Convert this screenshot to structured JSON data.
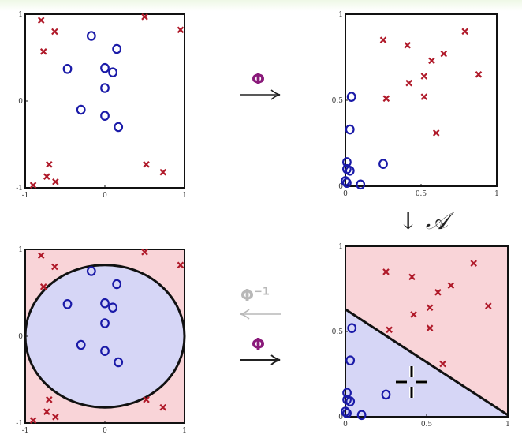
{
  "operators": {
    "phi": "Φ",
    "phi_inverse_base": "Φ",
    "phi_inverse_exp": "−1",
    "down_arrow": "↓",
    "classifier": "𝒜"
  },
  "colors": {
    "cross": "#b01a2a",
    "circle": "#1a1aa8",
    "region_red": "#f9d4d8",
    "region_blue": "#d6d6f6",
    "boundary": "#111111",
    "operator": "#8a1a7a"
  },
  "input_space": {
    "x_ticks": [
      "-1",
      "0",
      "1"
    ],
    "y_ticks": [
      "1",
      "0",
      "-1"
    ],
    "crosses": [
      [
        -0.8,
        0.93
      ],
      [
        -0.63,
        0.8
      ],
      [
        -0.77,
        0.57
      ],
      [
        0.5,
        0.97
      ],
      [
        0.95,
        0.82
      ],
      [
        -0.7,
        -0.73
      ],
      [
        -0.73,
        -0.87
      ],
      [
        -0.62,
        -0.93
      ],
      [
        -0.9,
        -0.97
      ],
      [
        0.52,
        -0.73
      ],
      [
        0.73,
        -0.82
      ]
    ],
    "circles": [
      [
        -0.17,
        0.75
      ],
      [
        0.15,
        0.6
      ],
      [
        -0.47,
        0.37
      ],
      [
        0.0,
        0.38
      ],
      [
        0.1,
        0.33
      ],
      [
        0.0,
        0.15
      ],
      [
        -0.3,
        -0.1
      ],
      [
        0.0,
        -0.17
      ],
      [
        0.17,
        -0.3
      ]
    ]
  },
  "feature_space": {
    "x_ticks": [
      "0",
      "0.5",
      "1"
    ],
    "y_ticks": [
      "1",
      "0.5",
      "0"
    ],
    "crosses": [
      [
        0.25,
        0.85
      ],
      [
        0.41,
        0.82
      ],
      [
        0.65,
        0.77
      ],
      [
        0.79,
        0.9
      ],
      [
        0.57,
        0.73
      ],
      [
        0.52,
        0.64
      ],
      [
        0.42,
        0.6
      ],
      [
        0.88,
        0.65
      ],
      [
        0.27,
        0.51
      ],
      [
        0.52,
        0.52
      ],
      [
        0.6,
        0.31
      ]
    ],
    "circles": [
      [
        0.04,
        0.52
      ],
      [
        0.03,
        0.33
      ],
      [
        0.01,
        0.14
      ],
      [
        0.01,
        0.1
      ],
      [
        0.03,
        0.09
      ],
      [
        0.0,
        0.03
      ],
      [
        0.01,
        0.02
      ],
      [
        0.1,
        0.01
      ],
      [
        0.25,
        0.13
      ]
    ]
  },
  "decision_boundary": {
    "ellipse": {
      "cx": 0.0,
      "cy": 0.0,
      "rx": 1.0,
      "ry": 0.82
    },
    "line": [
      [
        0.0,
        0.63
      ],
      [
        1.0,
        0.01
      ]
    ]
  }
}
